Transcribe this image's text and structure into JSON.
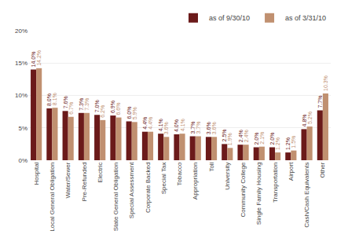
{
  "chart_data": {
    "type": "bar",
    "categories": [
      "Hospital",
      "Local General Obligation",
      "Water/Sewer",
      "Pre-Refunded",
      "Electric",
      "State General Obligation",
      "Special Assessment",
      "Corporate Backed",
      "Special Tax",
      "Tobacco",
      "Appropriation",
      "Toll",
      "University",
      "Community College",
      "Single Family Housing",
      "Transportation",
      "Airport",
      "Cash/Cash Equivalents",
      "Other"
    ],
    "series": [
      {
        "name": "as of 9/30/10",
        "color": "#6b1a1a",
        "values": [
          14.0,
          8.0,
          7.6,
          7.3,
          7.0,
          6.9,
          6.0,
          4.4,
          4.1,
          4.0,
          3.7,
          3.6,
          2.5,
          2.4,
          2.0,
          2.0,
          1.2,
          4.8,
          7.7
        ],
        "value_labels": [
          "14.0%",
          "8.0%",
          "7.6%",
          "7.3%",
          "7.0%",
          "6.9%",
          "6.0%",
          "4.4%",
          "4.1%",
          "4.0%",
          "3.7%",
          "3.6%",
          "2.5%",
          "2.4%",
          "2.0%",
          "2.0%",
          "1.2%",
          "4.8%",
          "7.7%"
        ]
      },
      {
        "name": "as of 3/31/10",
        "color": "#c09070",
        "values": [
          14.2,
          8.1,
          6.7,
          7.3,
          6.2,
          6.6,
          5.9,
          4.4,
          3.6,
          4.1,
          3.7,
          3.6,
          1.9,
          2.4,
          2.1,
          1.2,
          1.5,
          5.2,
          10.3
        ],
        "value_labels": [
          "14.2%",
          "8.1%",
          "6.7%",
          "7.3%",
          "6.2%",
          "6.6%",
          "5.9%",
          "4.4%",
          "3.6%",
          "4.1%",
          "3.7%",
          "3.6%",
          "1.9%",
          "2.4%",
          "2.1%",
          "1.2%",
          "1.5%",
          "5.2%",
          "10.3%"
        ]
      }
    ],
    "ylim": [
      0,
      20
    ],
    "yticks": [
      {
        "value": 0,
        "label": "0%"
      },
      {
        "value": 5,
        "label": "5%"
      },
      {
        "value": 10,
        "label": "10%"
      },
      {
        "value": 15,
        "label": "15%"
      },
      {
        "value": 20,
        "label": "20%"
      }
    ],
    "grid": true,
    "legend": "upper right",
    "data_labels": true
  }
}
